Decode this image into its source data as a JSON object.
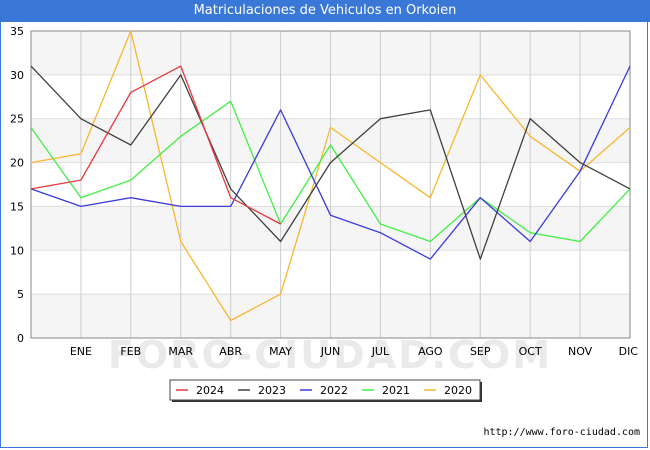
{
  "title": "Matriculaciones de Vehiculos en Orkoien",
  "footer_url": "http://www.foro-ciudad.com",
  "watermark": "FORO-CIUDAD.COM",
  "chart_data": {
    "type": "line",
    "title": "Matriculaciones de Vehiculos en Orkoien",
    "categories": [
      "",
      "ENE",
      "FEB",
      "MAR",
      "ABR",
      "MAY",
      "JUN",
      "JUL",
      "AGO",
      "SEP",
      "OCT",
      "NOV",
      "DIC"
    ],
    "ylim": [
      0,
      35
    ],
    "yticks": [
      0,
      5,
      10,
      15,
      20,
      25,
      30,
      35
    ],
    "grid": true,
    "legend_position": "bottom",
    "series": [
      {
        "name": "2024",
        "color": "#e8383b",
        "values": [
          17,
          18,
          28,
          31,
          16,
          13,
          null,
          null,
          null,
          null,
          null,
          null,
          null
        ]
      },
      {
        "name": "2023",
        "color": "#404040",
        "values": [
          31,
          25,
          22,
          30,
          17,
          11,
          20,
          25,
          26,
          9,
          25,
          20,
          17
        ]
      },
      {
        "name": "2022",
        "color": "#3b3bdb",
        "values": [
          17,
          15,
          16,
          15,
          15,
          26,
          14,
          12,
          9,
          16,
          11,
          19,
          31
        ]
      },
      {
        "name": "2021",
        "color": "#44ee44",
        "values": [
          24,
          16,
          18,
          23,
          27,
          13,
          22,
          13,
          11,
          16,
          12,
          11,
          17
        ]
      },
      {
        "name": "2020",
        "color": "#f7b731",
        "values": [
          20,
          21,
          35,
          11,
          2,
          5,
          24,
          20,
          16,
          30,
          23,
          19,
          24
        ]
      }
    ]
  }
}
